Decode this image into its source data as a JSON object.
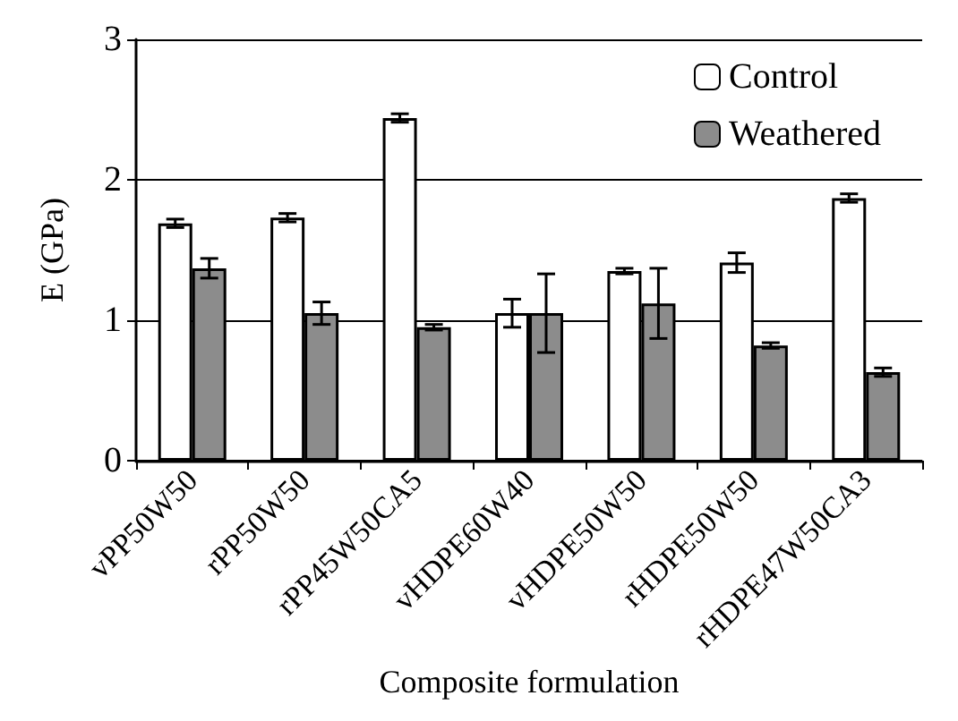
{
  "chart_data": {
    "type": "bar",
    "xlabel": "Composite formulation",
    "ylabel": "E (GPa)",
    "categories": [
      "vPP50W50",
      "rPP50W50",
      "rPP45W50CA5",
      "vHDPE60W40",
      "vHDPE50W50",
      "rHDPE50W50",
      "rHDPE47W50CA3"
    ],
    "series": [
      {
        "name": "Control",
        "color": "#ffffff",
        "values": [
          1.69,
          1.73,
          2.44,
          1.05,
          1.35,
          1.41,
          1.87
        ],
        "errors": [
          0.03,
          0.03,
          0.03,
          0.1,
          0.02,
          0.07,
          0.03
        ]
      },
      {
        "name": "Weathered",
        "color": "#8c8c8c",
        "values": [
          1.37,
          1.05,
          0.95,
          1.05,
          1.12,
          0.82,
          0.63
        ],
        "errors": [
          0.07,
          0.08,
          0.02,
          0.28,
          0.25,
          0.02,
          0.03
        ]
      }
    ],
    "ylim": [
      0,
      3
    ],
    "yticks": [
      0,
      1,
      2,
      3
    ],
    "grid": "y",
    "legend": "top right"
  }
}
